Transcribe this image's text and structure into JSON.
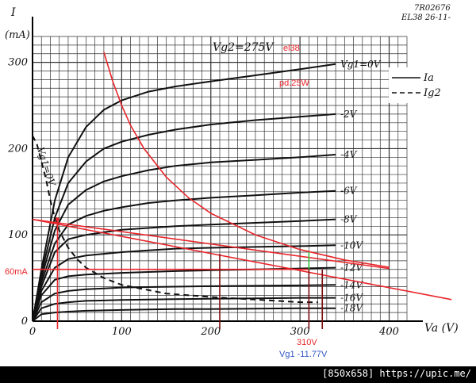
{
  "chart_data": {
    "type": "line",
    "title": "",
    "xlabel": "Va (V)",
    "ylabel": "I (mA)",
    "xlim": [
      0,
      420
    ],
    "ylim": [
      0,
      330
    ],
    "x_ticks": [
      "0",
      "100",
      "200",
      "300",
      "400"
    ],
    "y_ticks": [
      "0",
      "100",
      "200",
      "300"
    ],
    "grid": true,
    "doc_code": "7R02676",
    "doc_ref": "EL38 26-11-",
    "vg2_label": "Vg2=275V",
    "legend": {
      "position": "top-right",
      "entries": [
        "Ia",
        "Ig2"
      ]
    },
    "series": [
      {
        "name": "Vg1=0V",
        "x": [
          0,
          10,
          25,
          40,
          60,
          80,
          100,
          130,
          160,
          200,
          250,
          300,
          340
        ],
        "y": [
          0,
          60,
          140,
          190,
          225,
          245,
          256,
          266,
          272,
          278,
          285,
          292,
          298
        ]
      },
      {
        "name": "-2V",
        "x": [
          0,
          10,
          25,
          40,
          60,
          80,
          100,
          130,
          160,
          200,
          250,
          300,
          340
        ],
        "y": [
          0,
          55,
          120,
          160,
          185,
          200,
          208,
          216,
          222,
          228,
          233,
          237,
          240
        ]
      },
      {
        "name": "-4V",
        "x": [
          0,
          10,
          25,
          40,
          60,
          80,
          100,
          130,
          160,
          200,
          250,
          300,
          340
        ],
        "y": [
          0,
          50,
          105,
          135,
          152,
          162,
          168,
          175,
          180,
          184,
          187,
          190,
          193
        ]
      },
      {
        "name": "-6V",
        "x": [
          0,
          10,
          25,
          40,
          60,
          80,
          100,
          130,
          160,
          200,
          250,
          300,
          340
        ],
        "y": [
          0,
          45,
          90,
          112,
          122,
          128,
          132,
          137,
          140,
          143,
          146,
          149,
          151
        ]
      },
      {
        "name": "-8V",
        "x": [
          0,
          10,
          25,
          40,
          60,
          80,
          100,
          130,
          160,
          200,
          250,
          300,
          340
        ],
        "y": [
          0,
          40,
          80,
          95,
          100,
          103,
          106,
          108,
          110,
          112,
          114,
          116,
          118
        ]
      },
      {
        "name": "-10V",
        "x": [
          0,
          10,
          25,
          40,
          60,
          80,
          100,
          130,
          160,
          200,
          250,
          300,
          340
        ],
        "y": [
          0,
          35,
          62,
          72,
          76,
          78,
          80,
          82,
          84,
          85,
          86,
          87,
          88
        ]
      },
      {
        "name": "-12V",
        "x": [
          0,
          10,
          25,
          40,
          60,
          80,
          100,
          130,
          160,
          200,
          250,
          300,
          340
        ],
        "y": [
          0,
          30,
          48,
          52,
          54,
          55,
          56,
          57,
          58,
          59,
          60,
          61,
          62
        ]
      },
      {
        "name": "-14V",
        "x": [
          0,
          10,
          25,
          40,
          60,
          80,
          100,
          130,
          160,
          200,
          250,
          300,
          340
        ],
        "y": [
          0,
          22,
          32,
          35,
          37,
          38,
          39,
          39.5,
          40,
          40.5,
          41,
          41.5,
          42
        ]
      },
      {
        "name": "-16V",
        "x": [
          0,
          10,
          25,
          40,
          60,
          80,
          100,
          130,
          160,
          200,
          250,
          300,
          340
        ],
        "y": [
          0,
          15,
          20,
          22,
          23.5,
          24,
          24.5,
          25,
          25.5,
          26,
          26.5,
          27,
          27
        ]
      },
      {
        "name": "-18V",
        "x": [
          0,
          10,
          25,
          40,
          60,
          80,
          100,
          130,
          160,
          200,
          250,
          300,
          340
        ],
        "y": [
          0,
          8,
          10,
          11,
          12,
          12.5,
          13,
          13.5,
          14,
          14,
          14.5,
          15,
          15
        ]
      },
      {
        "name": "Vg1=0V",
        "style": "dashed",
        "x": [
          0,
          5,
          10,
          15,
          20,
          25,
          30,
          40,
          50,
          60,
          80,
          100,
          150,
          200,
          250,
          300,
          320
        ],
        "y": [
          215,
          205,
          185,
          165,
          140,
          120,
          105,
          85,
          72,
          62,
          50,
          42,
          32,
          28,
          25,
          22,
          22
        ]
      }
    ],
    "annotations": {
      "el38": "el38",
      "pd": "pd.25W",
      "hyperbola": {
        "x": [
          80,
          90,
          100,
          110,
          125,
          150,
          175,
          200,
          250,
          300,
          350,
          400
        ],
        "y": [
          312,
          278,
          250,
          227,
          200,
          167,
          143,
          125,
          100,
          83,
          71,
          62.5
        ]
      },
      "load_line": {
        "x": [
          0,
          470
        ],
        "y": [
          118,
          25
        ]
      },
      "load_line2": {
        "x": [
          0,
          400
        ],
        "y": [
          118,
          61
        ]
      },
      "label_60mA": "60mA",
      "label_310V": "310V",
      "label_vg1": "Vg1 -11.77V",
      "ref_60mA_y": 60,
      "ref_310V_x": 310,
      "ref_left_x": 28,
      "ref_left2_x": 210,
      "ref_right_x": 325
    },
    "colors": {
      "curves": "#111111",
      "grid": "#333333",
      "red": "#e8262b",
      "darkred": "#7a0d10",
      "green": "#2fbf3a",
      "blue": "#2f56c4"
    }
  },
  "footer": {
    "text": "[850x658] https://upic.me/"
  }
}
